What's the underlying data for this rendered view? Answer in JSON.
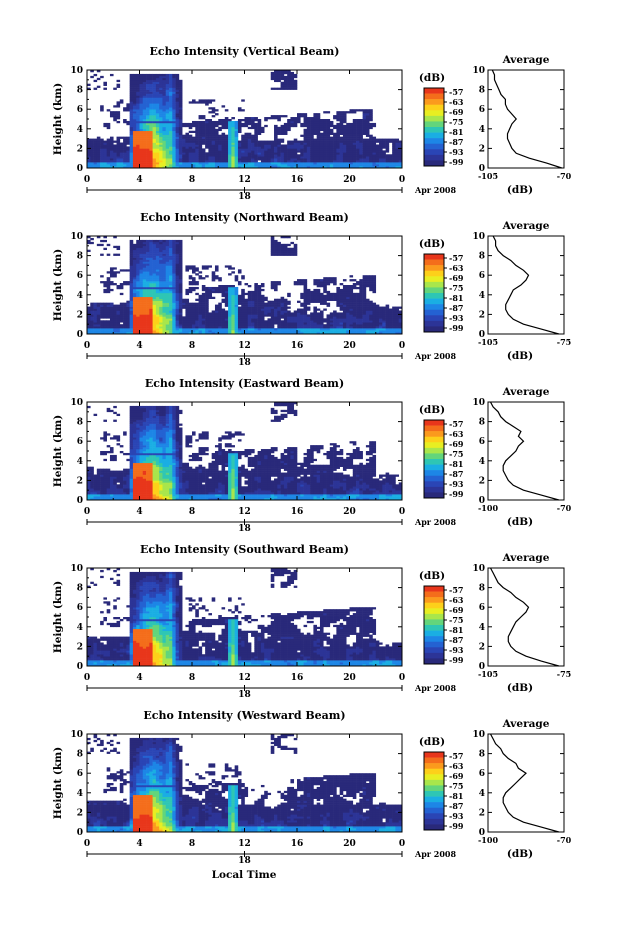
{
  "figure": {
    "xlabel": "Local Time",
    "date_label": "Apr 2008",
    "day_label": "18"
  },
  "colorbar": {
    "unit": "(dB)",
    "ticks": [
      "-57",
      "-63",
      "-69",
      "-75",
      "-81",
      "-87",
      "-93",
      "-99"
    ],
    "colors": [
      "#e8361b",
      "#f46d1b",
      "#fb9a1d",
      "#fdd01a",
      "#e8ee22",
      "#a9e64b",
      "#63d57b",
      "#2ec6b4",
      "#1aaee3",
      "#1d86e6",
      "#2462d2",
      "#2a45b5",
      "#2c3497",
      "#29297a"
    ]
  },
  "chart_data": [
    {
      "type": "heatmap",
      "title": "Echo Intensity (Vertical Beam)",
      "ylabel": "Height (km)",
      "xlim": [
        0,
        24
      ],
      "ylim": [
        0,
        10
      ],
      "xticks": [
        "0",
        "4",
        "8",
        "12",
        "16",
        "20",
        "0"
      ],
      "yticks": [
        "0",
        "2",
        "4",
        "6",
        "8",
        "10"
      ],
      "profile": {
        "title": "Average",
        "xlabel": "(dB)",
        "xlim": [
          -105,
          -70
        ],
        "xticks": [
          "-105",
          "-70"
        ],
        "yticks": [
          "0",
          "2",
          "4",
          "6",
          "8",
          "10"
        ],
        "height": [
          0,
          0.5,
          1,
          1.5,
          2,
          2.5,
          3,
          3.5,
          4,
          4.5,
          5,
          5.5,
          6,
          6.5,
          7,
          7.5,
          8,
          8.5,
          9,
          9.5,
          10
        ],
        "db": [
          -71,
          -78,
          -86,
          -92,
          -94,
          -95,
          -96,
          -96,
          -95,
          -94,
          -92,
          -94,
          -96,
          -97,
          -97,
          -99,
          -100,
          -101,
          -102,
          -102,
          -103
        ]
      }
    },
    {
      "type": "heatmap",
      "title": "Echo Intensity (Northward Beam)",
      "ylabel": "Height (km)",
      "xlim": [
        0,
        24
      ],
      "ylim": [
        0,
        10
      ],
      "xticks": [
        "0",
        "4",
        "8",
        "12",
        "16",
        "20",
        "0"
      ],
      "yticks": [
        "0",
        "2",
        "4",
        "6",
        "8",
        "10"
      ],
      "profile": {
        "title": "Average",
        "xlabel": "(dB)",
        "xlim": [
          -105,
          -75
        ],
        "xticks": [
          "-105",
          "-75"
        ],
        "yticks": [
          "0",
          "2",
          "4",
          "6",
          "8",
          "10"
        ],
        "height": [
          0,
          0.5,
          1,
          1.5,
          2,
          2.5,
          3,
          3.5,
          4,
          4.5,
          5,
          5.5,
          6,
          6.5,
          7,
          7.5,
          8,
          8.5,
          9,
          9.5,
          10
        ],
        "db": [
          -77,
          -84,
          -91,
          -95,
          -97,
          -98,
          -98,
          -97,
          -96,
          -95,
          -92,
          -90,
          -89,
          -91,
          -94,
          -96,
          -99,
          -101,
          -102,
          -102,
          -103
        ]
      }
    },
    {
      "type": "heatmap",
      "title": "Echo Intensity (Eastward Beam)",
      "ylabel": "Height (km)",
      "xlim": [
        0,
        24
      ],
      "ylim": [
        0,
        10
      ],
      "xticks": [
        "0",
        "4",
        "8",
        "12",
        "16",
        "20",
        "0"
      ],
      "yticks": [
        "0",
        "2",
        "4",
        "6",
        "8",
        "10"
      ],
      "profile": {
        "title": "Average",
        "xlabel": "(dB)",
        "xlim": [
          -100,
          -70
        ],
        "xticks": [
          "-100",
          "-70"
        ],
        "yticks": [
          "0",
          "2",
          "4",
          "6",
          "8",
          "10"
        ],
        "height": [
          0,
          0.5,
          1,
          1.5,
          2,
          2.5,
          3,
          3.5,
          4,
          4.5,
          5,
          5.5,
          6,
          6.5,
          7,
          7.5,
          8,
          8.5,
          9,
          9.5,
          10
        ],
        "db": [
          -72,
          -79,
          -86,
          -90,
          -92,
          -93,
          -94,
          -94,
          -93,
          -91,
          -89,
          -88,
          -86,
          -88,
          -87,
          -90,
          -93,
          -95,
          -96,
          -98,
          -99
        ]
      }
    },
    {
      "type": "heatmap",
      "title": "Echo Intensity (Southward Beam)",
      "ylabel": "Height (km)",
      "xlim": [
        0,
        24
      ],
      "ylim": [
        0,
        10
      ],
      "xticks": [
        "0",
        "4",
        "8",
        "12",
        "16",
        "20",
        "0"
      ],
      "yticks": [
        "0",
        "2",
        "4",
        "6",
        "8",
        "10"
      ],
      "profile": {
        "title": "Average",
        "xlabel": "(dB)",
        "xlim": [
          -105,
          -75
        ],
        "xticks": [
          "-105",
          "-75"
        ],
        "yticks": [
          "0",
          "2",
          "4",
          "6",
          "8",
          "10"
        ],
        "height": [
          0,
          0.5,
          1,
          1.5,
          2,
          2.5,
          3,
          3.5,
          4,
          4.5,
          5,
          5.5,
          6,
          6.5,
          7,
          7.5,
          8,
          8.5,
          9,
          9.5,
          10
        ],
        "db": [
          -77,
          -84,
          -90,
          -94,
          -96,
          -97,
          -97,
          -96,
          -95,
          -94,
          -92,
          -90,
          -89,
          -91,
          -94,
          -96,
          -99,
          -101,
          -102,
          -103,
          -104
        ]
      }
    },
    {
      "type": "heatmap",
      "title": "Echo Intensity (Westward Beam)",
      "ylabel": "Height (km)",
      "xlim": [
        0,
        24
      ],
      "ylim": [
        0,
        10
      ],
      "xticks": [
        "0",
        "4",
        "8",
        "12",
        "16",
        "20",
        "0"
      ],
      "yticks": [
        "0",
        "2",
        "4",
        "6",
        "8",
        "10"
      ],
      "profile": {
        "title": "Average",
        "xlabel": "(dB)",
        "xlim": [
          -100,
          -70
        ],
        "xticks": [
          "-100",
          "-70"
        ],
        "yticks": [
          "0",
          "2",
          "4",
          "6",
          "8",
          "10"
        ],
        "height": [
          0,
          0.5,
          1,
          1.5,
          2,
          2.5,
          3,
          3.5,
          4,
          4.5,
          5,
          5.5,
          6,
          6.5,
          7,
          7.5,
          8,
          8.5,
          9,
          9.5,
          10
        ],
        "db": [
          -72,
          -79,
          -86,
          -90,
          -92,
          -93,
          -94,
          -94,
          -93,
          -91,
          -89,
          -87,
          -85,
          -88,
          -89,
          -92,
          -94,
          -95,
          -97,
          -98,
          -99
        ]
      }
    }
  ]
}
